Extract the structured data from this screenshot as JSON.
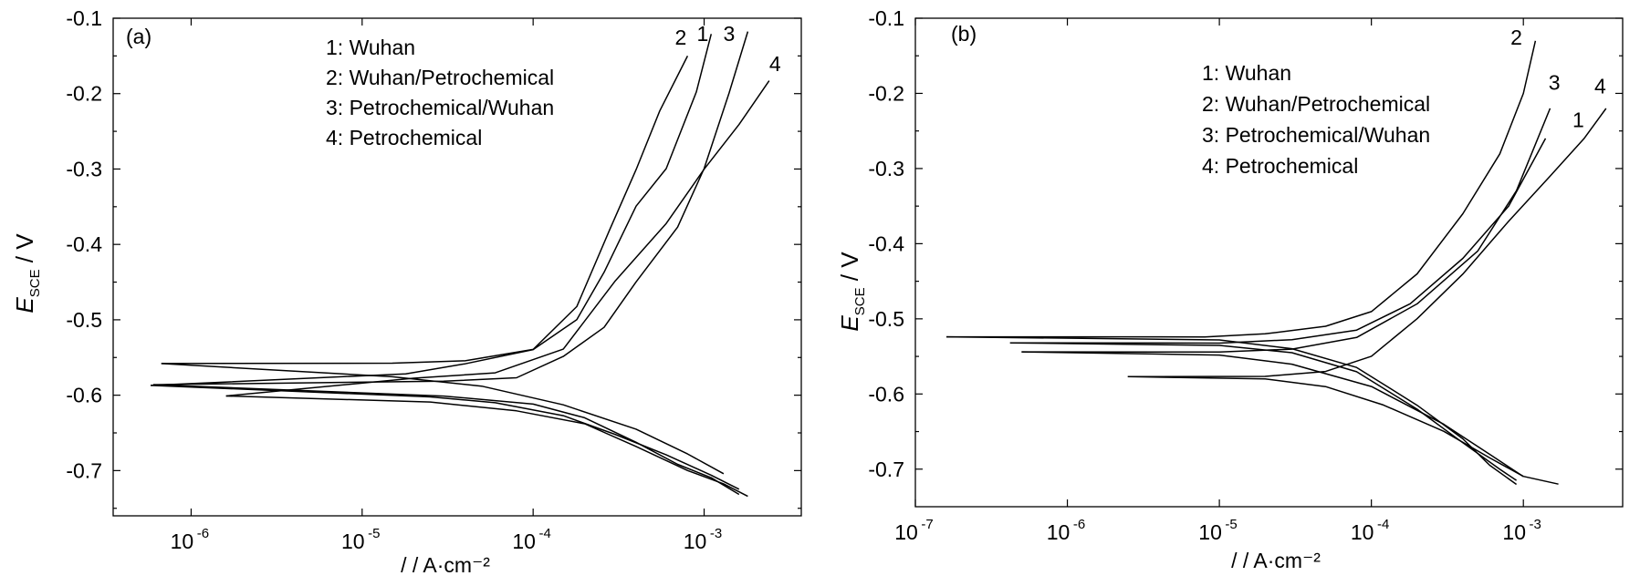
{
  "chart_data": [
    {
      "type": "line",
      "panel_label": "(a)",
      "ylabel_main": "E",
      "ylabel_sub": "SCE",
      "ylabel_unit": " / V",
      "xlabel": "/ / A·cm⁻²",
      "x_scale": "log",
      "xlim": [
        3.5e-07,
        0.0037
      ],
      "ylim": [
        -0.76,
        -0.1
      ],
      "x_ticks": [
        {
          "value": 1e-06,
          "base": "10",
          "exp": "-6"
        },
        {
          "value": 1e-05,
          "base": "10",
          "exp": "-5"
        },
        {
          "value": 0.0001,
          "base": "10",
          "exp": "-4"
        },
        {
          "value": 0.001,
          "base": "10",
          "exp": "-3"
        }
      ],
      "y_ticks": [
        "-0.1",
        "-0.2",
        "-0.3",
        "-0.4",
        "-0.5",
        "-0.6",
        "-0.7"
      ],
      "y_tick_values": [
        -0.1,
        -0.2,
        -0.3,
        -0.4,
        -0.5,
        -0.6,
        -0.7
      ],
      "legend": [
        "1: Wuhan",
        "2: Wuhan/Petrochemical",
        "3: Petrochemical/Wuhan",
        "4: Petrochemical"
      ],
      "legend_position": "top-center",
      "series": [
        {
          "name": "1",
          "ecorr": -0.587,
          "x_min": 5.8e-07,
          "anodic_x": [
            1.8e-05,
            4e-05,
            0.0001,
            0.00018,
            0.00026,
            0.0004,
            0.0006,
            0.0009,
            0.0011
          ],
          "anodic_y": [
            -0.57,
            -0.56,
            -0.54,
            -0.5,
            -0.44,
            -0.35,
            -0.3,
            -0.2,
            -0.12
          ],
          "cathodic_x": [
            2.5e-05,
            6e-05,
            0.00015,
            0.0003,
            0.0006,
            0.0011,
            0.0016
          ],
          "cathodic_y": [
            -0.6,
            -0.61,
            -0.625,
            -0.65,
            -0.68,
            -0.705,
            -0.725
          ]
        },
        {
          "name": "2",
          "ecorr": -0.558,
          "x_min": 6.7e-07,
          "anodic_x": [
            1.5e-05,
            4e-05,
            0.0001,
            0.00018,
            0.00028,
            0.0004,
            0.00055,
            0.0008
          ],
          "anodic_y": [
            -0.557,
            -0.555,
            -0.54,
            -0.48,
            -0.38,
            -0.3,
            -0.22,
            -0.15
          ],
          "cathodic_x": [
            1.5e-05,
            5e-05,
            0.00015,
            0.0004,
            0.0008,
            0.0013
          ],
          "cathodic_y": [
            -0.575,
            -0.59,
            -0.615,
            -0.645,
            -0.68,
            -0.705
          ]
        },
        {
          "name": "3",
          "ecorr": -0.586,
          "x_min": 6e-07,
          "anodic_x": [
            3e-05,
            8e-05,
            0.00015,
            0.00026,
            0.0004,
            0.0007,
            0.001,
            0.0014,
            0.0018
          ],
          "anodic_y": [
            -0.58,
            -0.575,
            -0.55,
            -0.51,
            -0.45,
            -0.38,
            -0.3,
            -0.2,
            -0.12
          ],
          "cathodic_x": [
            3e-05,
            0.0001,
            0.0002,
            0.0004,
            0.0007,
            0.0011,
            0.0016
          ],
          "cathodic_y": [
            -0.6,
            -0.61,
            -0.63,
            -0.66,
            -0.69,
            -0.71,
            -0.73
          ]
        },
        {
          "name": "4",
          "ecorr": -0.601,
          "x_min": 1.6e-06,
          "anodic_x": [
            2e-05,
            6e-05,
            0.00015,
            0.0003,
            0.0006,
            0.001,
            0.0016,
            0.0024
          ],
          "anodic_y": [
            -0.58,
            -0.57,
            -0.54,
            -0.45,
            -0.37,
            -0.3,
            -0.24,
            -0.18
          ],
          "cathodic_x": [
            2.5e-05,
            8e-05,
            0.0002,
            0.0004,
            0.0008,
            0.0013,
            0.0018
          ],
          "cathodic_y": [
            -0.61,
            -0.62,
            -0.64,
            -0.67,
            -0.7,
            -0.72,
            -0.735
          ]
        }
      ],
      "curve_labels": [
        {
          "text": "2",
          "x": 0.00073,
          "y": -0.135
        },
        {
          "text": "1",
          "x": 0.00098,
          "y": -0.13
        },
        {
          "text": "3",
          "x": 0.0014,
          "y": -0.13
        },
        {
          "text": "4",
          "x": 0.0026,
          "y": -0.17
        }
      ]
    },
    {
      "type": "line",
      "panel_label": "(b)",
      "ylabel_main": "E",
      "ylabel_sub": "SCE",
      "ylabel_unit": " / V",
      "xlabel": "/ / A·cm⁻²",
      "x_scale": "log",
      "xlim": [
        1e-07,
        0.0045
      ],
      "ylim": [
        -0.75,
        -0.1
      ],
      "x_ticks": [
        {
          "value": 1e-07,
          "base": "10",
          "exp": "-7"
        },
        {
          "value": 1e-06,
          "base": "10",
          "exp": "-6"
        },
        {
          "value": 1e-05,
          "base": "10",
          "exp": "-5"
        },
        {
          "value": 0.0001,
          "base": "10",
          "exp": "-4"
        },
        {
          "value": 0.001,
          "base": "10",
          "exp": "-3"
        }
      ],
      "y_ticks": [
        "-0.1",
        "-0.2",
        "-0.3",
        "-0.4",
        "-0.5",
        "-0.6",
        "-0.7"
      ],
      "y_tick_values": [
        -0.1,
        -0.2,
        -0.3,
        -0.4,
        -0.5,
        -0.6,
        -0.7
      ],
      "legend": [
        "1: Wuhan",
        "2: Wuhan/Petrochemical",
        "3: Petrochemical/Wuhan",
        "4: Petrochemical"
      ],
      "legend_position": "top-center",
      "series": [
        {
          "name": "1",
          "ecorr": -0.532,
          "x_min": 4.2e-07,
          "anodic_x": [
            1e-05,
            3e-05,
            8e-05,
            0.00018,
            0.0004,
            0.0008,
            0.0014
          ],
          "anodic_y": [
            -0.532,
            -0.528,
            -0.515,
            -0.48,
            -0.42,
            -0.35,
            -0.26
          ],
          "cathodic_x": [
            1e-05,
            3e-05,
            8e-05,
            0.0002,
            0.0004,
            0.0007,
            0.0009
          ],
          "cathodic_y": [
            -0.535,
            -0.545,
            -0.57,
            -0.62,
            -0.665,
            -0.7,
            -0.715
          ]
        },
        {
          "name": "2",
          "ecorr": -0.524,
          "x_min": 1.6e-07,
          "anodic_x": [
            8e-06,
            2e-05,
            5e-05,
            0.0001,
            0.0002,
            0.0004,
            0.0007,
            0.001,
            0.0012
          ],
          "anodic_y": [
            -0.524,
            -0.52,
            -0.51,
            -0.49,
            -0.44,
            -0.36,
            -0.28,
            -0.2,
            -0.13
          ],
          "cathodic_x": [
            1e-05,
            3e-05,
            8e-05,
            0.0002,
            0.0004,
            0.0006,
            0.0009
          ],
          "cathodic_y": [
            -0.528,
            -0.54,
            -0.565,
            -0.615,
            -0.66,
            -0.695,
            -0.72
          ]
        },
        {
          "name": "3",
          "ecorr": -0.544,
          "x_min": 5e-07,
          "anodic_x": [
            1e-05,
            3e-05,
            8e-05,
            0.0002,
            0.0005,
            0.0009,
            0.0015
          ],
          "anodic_y": [
            -0.544,
            -0.54,
            -0.525,
            -0.48,
            -0.41,
            -0.33,
            -0.22
          ],
          "cathodic_x": [
            1e-05,
            3e-05,
            0.0001,
            0.0003,
            0.0006,
            0.001
          ],
          "cathodic_y": [
            -0.548,
            -0.56,
            -0.59,
            -0.64,
            -0.68,
            -0.71
          ]
        },
        {
          "name": "4",
          "ecorr": -0.577,
          "x_min": 2.5e-06,
          "anodic_x": [
            2e-05,
            5e-05,
            0.0001,
            0.0002,
            0.0004,
            0.0008,
            0.0015,
            0.0025,
            0.0035
          ],
          "anodic_y": [
            -0.577,
            -0.57,
            -0.55,
            -0.5,
            -0.44,
            -0.37,
            -0.31,
            -0.26,
            -0.22
          ],
          "cathodic_x": [
            2e-05,
            5e-05,
            0.00012,
            0.0003,
            0.0006,
            0.001,
            0.0017
          ],
          "cathodic_y": [
            -0.58,
            -0.59,
            -0.615,
            -0.65,
            -0.685,
            -0.71,
            -0.72
          ]
        }
      ],
      "curve_labels": [
        {
          "text": "2",
          "x": 0.0009,
          "y": -0.135
        },
        {
          "text": "3",
          "x": 0.0016,
          "y": -0.195
        },
        {
          "text": "4",
          "x": 0.0032,
          "y": -0.2
        },
        {
          "text": "1",
          "x": 0.0023,
          "y": -0.245
        }
      ]
    }
  ]
}
